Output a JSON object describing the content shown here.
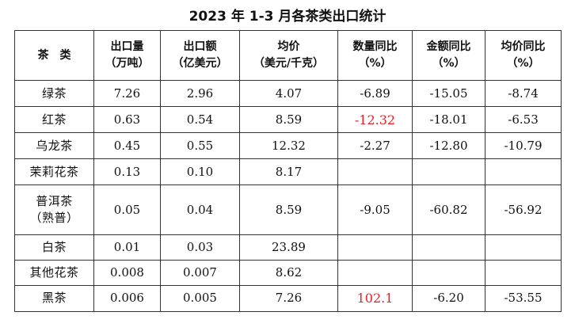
{
  "title": "2023 年 1-3 月各茶类出口统计",
  "columns": [
    {
      "line1": "茶　类",
      "line2": ""
    },
    {
      "line1": "出口量",
      "line2": "（万吨）"
    },
    {
      "line1": "出口额",
      "line2": "（亿美元）"
    },
    {
      "line1": "均价",
      "line2": "（美元/千克）"
    },
    {
      "line1": "数量同比",
      "line2": "（%）"
    },
    {
      "line1": "金额同比",
      "line2": "（%）"
    },
    {
      "line1": "均价同比",
      "line2": "（%）"
    }
  ],
  "rows": [
    {
      "name": [
        "绿茶"
      ],
      "volume": "7.26",
      "value": "2.96",
      "price": "4.07",
      "qty_yoy": "-6.89",
      "amt_yoy": "-15.05",
      "price_yoy": "-8.74"
    },
    {
      "name": [
        "红茶"
      ],
      "volume": "0.63",
      "value": "0.54",
      "price": "8.59",
      "qty_yoy": "-12.32",
      "amt_yoy": "-18.01",
      "price_yoy": "-6.53"
    },
    {
      "name": [
        "乌龙茶"
      ],
      "volume": "0.45",
      "value": "0.55",
      "price": "12.32",
      "qty_yoy": "-2.27",
      "amt_yoy": "-12.80",
      "price_yoy": "-10.79"
    },
    {
      "name": [
        "茉莉花茶"
      ],
      "volume": "0.13",
      "value": "0.10",
      "price": "8.17",
      "qty_yoy": "",
      "amt_yoy": "",
      "price_yoy": ""
    },
    {
      "name": [
        "普洱茶",
        "（熟普）"
      ],
      "volume": "0.05",
      "value": "0.04",
      "price": "8.59",
      "qty_yoy": "-9.05",
      "amt_yoy": "-60.82",
      "price_yoy": "-56.92"
    },
    {
      "name": [
        "白茶"
      ],
      "volume": "0.01",
      "value": "0.03",
      "price": "23.89",
      "qty_yoy": "",
      "amt_yoy": "",
      "price_yoy": ""
    },
    {
      "name": [
        "其他花茶"
      ],
      "volume": "0.008",
      "value": "0.007",
      "price": "8.62",
      "qty_yoy": "",
      "amt_yoy": "",
      "price_yoy": ""
    },
    {
      "name": [
        "黑茶"
      ],
      "volume": "0.006",
      "value": "0.005",
      "price": "7.26",
      "qty_yoy": "102.1",
      "amt_yoy": "-6.20",
      "price_yoy": "-53.55"
    }
  ],
  "highlight_color": "#e8202a"
}
